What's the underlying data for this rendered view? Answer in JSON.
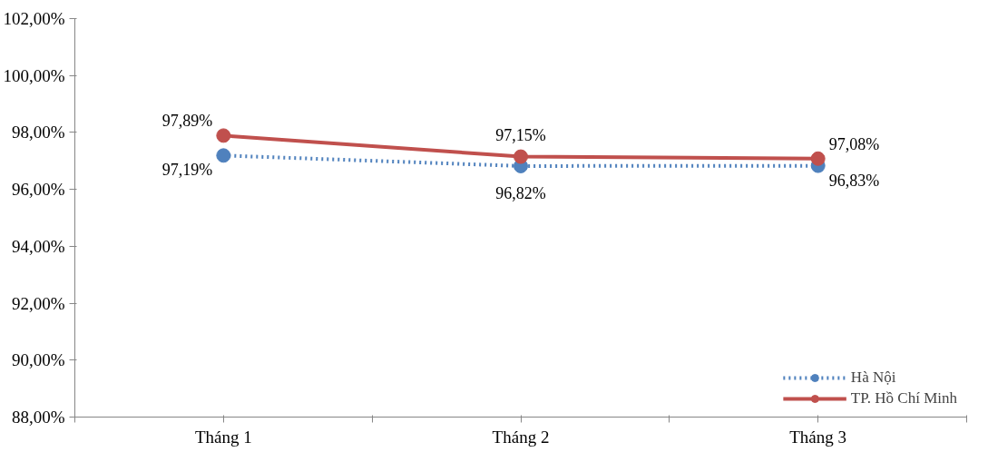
{
  "chart_data": {
    "type": "line",
    "categories": [
      "Tháng 1",
      "Tháng 2",
      "Tháng 3"
    ],
    "series": [
      {
        "name": "Hà Nội",
        "color": "#4f81bd",
        "values": [
          97.19,
          96.82,
          96.83
        ],
        "value_labels": [
          "97,19%",
          "96,82%",
          "96,83%"
        ],
        "line_style": "dotted"
      },
      {
        "name": "TP. Hồ Chí Minh",
        "color": "#c0504d",
        "values": [
          97.89,
          97.15,
          97.08
        ],
        "value_labels": [
          "97,89%",
          "97,15%",
          "97,08%"
        ],
        "line_style": "solid"
      }
    ],
    "ylim": [
      88,
      102
    ],
    "yticks": [
      {
        "value": 88,
        "label": "88,00%"
      },
      {
        "value": 90,
        "label": "90,00%"
      },
      {
        "value": 92,
        "label": "92,00%"
      },
      {
        "value": 94,
        "label": "94,00%"
      },
      {
        "value": 96,
        "label": "96,00%"
      },
      {
        "value": 98,
        "label": "98,00%"
      },
      {
        "value": 100,
        "label": "100,00%"
      },
      {
        "value": 102,
        "label": "102,00%"
      }
    ],
    "marker": "circle",
    "grid": false,
    "legend": "bottom right"
  }
}
